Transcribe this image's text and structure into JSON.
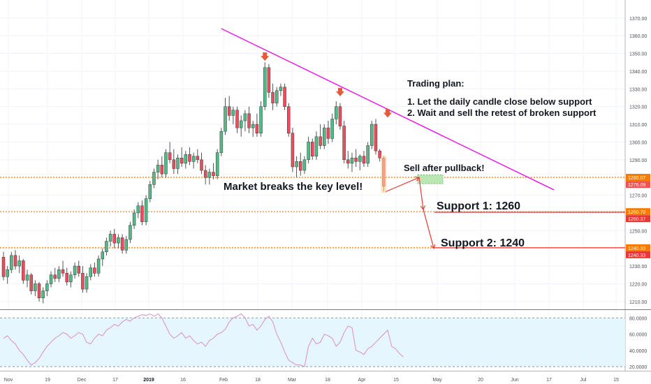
{
  "chart_data": [
    {
      "type": "candlestick",
      "title": "",
      "price_axis": {
        "ticks": [
          "1370.00",
          "1360.00",
          "1350.00",
          "1340.00",
          "1330.00",
          "1320.00",
          "1310.00",
          "1300.00",
          "1290.00",
          "1280.00",
          "1270.00",
          "1260.00",
          "1250.00",
          "1240.00",
          "1230.00",
          "1220.00",
          "1210.00"
        ],
        "ylim": [
          1206,
          1377
        ],
        "position": "right"
      },
      "time_axis": {
        "labels": [
          "Nov",
          "19",
          "Dec",
          "17",
          "2019",
          "16",
          "Feb",
          "18",
          "Mar",
          "18",
          "Apr",
          "15",
          "May",
          "20",
          "Jun",
          "17",
          "Jul",
          "15"
        ],
        "bold_labels": [
          "2019"
        ]
      },
      "grid": true,
      "candles": [
        {
          "o": 1235,
          "h": 1238,
          "l": 1222,
          "c": 1224
        },
        {
          "o": 1224,
          "h": 1230,
          "l": 1220,
          "c": 1228
        },
        {
          "o": 1228,
          "h": 1238,
          "l": 1226,
          "c": 1236
        },
        {
          "o": 1236,
          "h": 1239,
          "l": 1228,
          "c": 1230
        },
        {
          "o": 1230,
          "h": 1236,
          "l": 1226,
          "c": 1233
        },
        {
          "o": 1233,
          "h": 1234,
          "l": 1220,
          "c": 1222
        },
        {
          "o": 1222,
          "h": 1228,
          "l": 1218,
          "c": 1225
        },
        {
          "o": 1225,
          "h": 1226,
          "l": 1214,
          "c": 1216
        },
        {
          "o": 1216,
          "h": 1222,
          "l": 1213,
          "c": 1220
        },
        {
          "o": 1220,
          "h": 1221,
          "l": 1210,
          "c": 1212
        },
        {
          "o": 1212,
          "h": 1218,
          "l": 1209,
          "c": 1216
        },
        {
          "o": 1216,
          "h": 1222,
          "l": 1213,
          "c": 1220
        },
        {
          "o": 1220,
          "h": 1227,
          "l": 1218,
          "c": 1225
        },
        {
          "o": 1225,
          "h": 1229,
          "l": 1221,
          "c": 1223
        },
        {
          "o": 1223,
          "h": 1230,
          "l": 1221,
          "c": 1228
        },
        {
          "o": 1228,
          "h": 1233,
          "l": 1224,
          "c": 1226
        },
        {
          "o": 1226,
          "h": 1229,
          "l": 1219,
          "c": 1221
        },
        {
          "o": 1221,
          "h": 1227,
          "l": 1218,
          "c": 1225
        },
        {
          "o": 1225,
          "h": 1232,
          "l": 1223,
          "c": 1230
        },
        {
          "o": 1230,
          "h": 1233,
          "l": 1224,
          "c": 1226
        },
        {
          "o": 1226,
          "h": 1230,
          "l": 1215,
          "c": 1217
        },
        {
          "o": 1217,
          "h": 1226,
          "l": 1215,
          "c": 1224
        },
        {
          "o": 1224,
          "h": 1231,
          "l": 1222,
          "c": 1229
        },
        {
          "o": 1229,
          "h": 1232,
          "l": 1224,
          "c": 1226
        },
        {
          "o": 1226,
          "h": 1236,
          "l": 1224,
          "c": 1234
        },
        {
          "o": 1234,
          "h": 1240,
          "l": 1230,
          "c": 1238
        },
        {
          "o": 1238,
          "h": 1246,
          "l": 1236,
          "c": 1244
        },
        {
          "o": 1244,
          "h": 1250,
          "l": 1241,
          "c": 1248
        },
        {
          "o": 1248,
          "h": 1251,
          "l": 1240,
          "c": 1243
        },
        {
          "o": 1243,
          "h": 1248,
          "l": 1240,
          "c": 1246
        },
        {
          "o": 1246,
          "h": 1248,
          "l": 1237,
          "c": 1239
        },
        {
          "o": 1239,
          "h": 1247,
          "l": 1237,
          "c": 1245
        },
        {
          "o": 1245,
          "h": 1255,
          "l": 1243,
          "c": 1253
        },
        {
          "o": 1253,
          "h": 1262,
          "l": 1251,
          "c": 1260
        },
        {
          "o": 1260,
          "h": 1266,
          "l": 1257,
          "c": 1264
        },
        {
          "o": 1264,
          "h": 1267,
          "l": 1253,
          "c": 1255
        },
        {
          "o": 1255,
          "h": 1270,
          "l": 1253,
          "c": 1268
        },
        {
          "o": 1268,
          "h": 1278,
          "l": 1266,
          "c": 1276
        },
        {
          "o": 1276,
          "h": 1285,
          "l": 1274,
          "c": 1283
        },
        {
          "o": 1283,
          "h": 1290,
          "l": 1279,
          "c": 1287
        },
        {
          "o": 1287,
          "h": 1292,
          "l": 1280,
          "c": 1282
        },
        {
          "o": 1282,
          "h": 1296,
          "l": 1280,
          "c": 1294
        },
        {
          "o": 1294,
          "h": 1300,
          "l": 1288,
          "c": 1290
        },
        {
          "o": 1290,
          "h": 1296,
          "l": 1282,
          "c": 1285
        },
        {
          "o": 1285,
          "h": 1293,
          "l": 1282,
          "c": 1291
        },
        {
          "o": 1291,
          "h": 1297,
          "l": 1286,
          "c": 1288
        },
        {
          "o": 1288,
          "h": 1295,
          "l": 1285,
          "c": 1293
        },
        {
          "o": 1293,
          "h": 1297,
          "l": 1287,
          "c": 1289
        },
        {
          "o": 1289,
          "h": 1294,
          "l": 1285,
          "c": 1292
        },
        {
          "o": 1292,
          "h": 1296,
          "l": 1288,
          "c": 1290
        },
        {
          "o": 1290,
          "h": 1294,
          "l": 1282,
          "c": 1284
        },
        {
          "o": 1284,
          "h": 1287,
          "l": 1276,
          "c": 1280
        },
        {
          "o": 1280,
          "h": 1285,
          "l": 1276,
          "c": 1283
        },
        {
          "o": 1283,
          "h": 1288,
          "l": 1279,
          "c": 1281
        },
        {
          "o": 1281,
          "h": 1296,
          "l": 1279,
          "c": 1294
        },
        {
          "o": 1294,
          "h": 1308,
          "l": 1292,
          "c": 1306
        },
        {
          "o": 1306,
          "h": 1325,
          "l": 1304,
          "c": 1320
        },
        {
          "o": 1320,
          "h": 1326,
          "l": 1312,
          "c": 1315
        },
        {
          "o": 1315,
          "h": 1320,
          "l": 1310,
          "c": 1318
        },
        {
          "o": 1318,
          "h": 1320,
          "l": 1305,
          "c": 1308
        },
        {
          "o": 1308,
          "h": 1315,
          "l": 1303,
          "c": 1312
        },
        {
          "o": 1312,
          "h": 1318,
          "l": 1306,
          "c": 1316
        },
        {
          "o": 1316,
          "h": 1320,
          "l": 1305,
          "c": 1308
        },
        {
          "o": 1308,
          "h": 1312,
          "l": 1303,
          "c": 1310
        },
        {
          "o": 1310,
          "h": 1316,
          "l": 1303,
          "c": 1305
        },
        {
          "o": 1305,
          "h": 1323,
          "l": 1303,
          "c": 1320
        },
        {
          "o": 1320,
          "h": 1345,
          "l": 1318,
          "c": 1342
        },
        {
          "o": 1342,
          "h": 1344,
          "l": 1325,
          "c": 1328
        },
        {
          "o": 1328,
          "h": 1333,
          "l": 1318,
          "c": 1322
        },
        {
          "o": 1322,
          "h": 1331,
          "l": 1320,
          "c": 1329
        },
        {
          "o": 1329,
          "h": 1333,
          "l": 1326,
          "c": 1331
        },
        {
          "o": 1331,
          "h": 1333,
          "l": 1318,
          "c": 1320
        },
        {
          "o": 1320,
          "h": 1322,
          "l": 1303,
          "c": 1305
        },
        {
          "o": 1305,
          "h": 1308,
          "l": 1283,
          "c": 1286
        },
        {
          "o": 1286,
          "h": 1292,
          "l": 1280,
          "c": 1289
        },
        {
          "o": 1289,
          "h": 1294,
          "l": 1281,
          "c": 1284
        },
        {
          "o": 1284,
          "h": 1292,
          "l": 1282,
          "c": 1290
        },
        {
          "o": 1290,
          "h": 1303,
          "l": 1288,
          "c": 1300
        },
        {
          "o": 1300,
          "h": 1302,
          "l": 1290,
          "c": 1292
        },
        {
          "o": 1292,
          "h": 1306,
          "l": 1290,
          "c": 1303
        },
        {
          "o": 1303,
          "h": 1310,
          "l": 1296,
          "c": 1298
        },
        {
          "o": 1298,
          "h": 1310,
          "l": 1296,
          "c": 1308
        },
        {
          "o": 1308,
          "h": 1312,
          "l": 1299,
          "c": 1302
        },
        {
          "o": 1302,
          "h": 1316,
          "l": 1300,
          "c": 1313
        },
        {
          "o": 1313,
          "h": 1323,
          "l": 1310,
          "c": 1320
        },
        {
          "o": 1320,
          "h": 1322,
          "l": 1307,
          "c": 1309
        },
        {
          "o": 1309,
          "h": 1312,
          "l": 1288,
          "c": 1290
        },
        {
          "o": 1290,
          "h": 1295,
          "l": 1285,
          "c": 1288
        },
        {
          "o": 1288,
          "h": 1294,
          "l": 1283,
          "c": 1291
        },
        {
          "o": 1291,
          "h": 1296,
          "l": 1286,
          "c": 1289
        },
        {
          "o": 1289,
          "h": 1293,
          "l": 1284,
          "c": 1292
        },
        {
          "o": 1292,
          "h": 1295,
          "l": 1286,
          "c": 1288
        },
        {
          "o": 1288,
          "h": 1300,
          "l": 1286,
          "c": 1298
        },
        {
          "o": 1298,
          "h": 1312,
          "l": 1296,
          "c": 1310
        },
        {
          "o": 1310,
          "h": 1313,
          "l": 1293,
          "c": 1295
        },
        {
          "o": 1295,
          "h": 1296,
          "l": 1289,
          "c": 1291
        },
        {
          "o": 1291,
          "h": 1292,
          "l": 1272,
          "c": 1275
        }
      ],
      "trendline": {
        "from": {
          "bar": 55,
          "price": 1364
        },
        "to": {
          "bar": 139,
          "price": 1273
        },
        "color": "#e81ee8"
      },
      "reversal_arrows": [
        {
          "bar": 66,
          "price": 1347
        },
        {
          "bar": 85,
          "price": 1327
        },
        {
          "bar": 97,
          "price": 1315
        }
      ],
      "levels": [
        {
          "price": 1280.07,
          "label": "1280.07",
          "color": "#f57c00",
          "style": "dotted"
        },
        {
          "price": 1276.09,
          "label": "1276.09",
          "color": "#ef5350",
          "style": "none"
        },
        {
          "price": 1260.7,
          "label": "1260.70",
          "color": "#f57c00",
          "style": "dotted"
        },
        {
          "price": 1260.37,
          "label": "1260.37",
          "color": "#e53935",
          "style": "solid"
        },
        {
          "price": 1240.33,
          "label": "1240.33",
          "color": "#f57c00",
          "style": "dotted"
        },
        {
          "price": 1240.33,
          "label": "1240.33",
          "color": "#e53935",
          "style": "solid"
        }
      ],
      "annotations": {
        "plan_title": "Trading plan:",
        "plan_step1": "1. Let the daily candle close below support",
        "plan_step2": "2. Wait and sell the retest of broken support",
        "breakout": "Market breaks the key level!",
        "pullback": "Sell after pullback!",
        "support1": "Support 1: 1260",
        "support2": "Support 2: 1240"
      },
      "colors": {
        "up": "#53b987",
        "down": "#eb4d5c",
        "trend": "#e81ee8",
        "level": "#f57c00",
        "target": "#e53935"
      }
    },
    {
      "type": "line",
      "indicator": "oscillator",
      "ticks": [
        "80.0000",
        "60.0000",
        "40.0000",
        "20.0000"
      ],
      "ylim": [
        15,
        88
      ],
      "band": [
        20,
        80
      ],
      "values": [
        55,
        58,
        52,
        48,
        40,
        35,
        28,
        22,
        25,
        30,
        38,
        45,
        50,
        55,
        58,
        62,
        60,
        55,
        58,
        62,
        60,
        50,
        48,
        55,
        60,
        58,
        65,
        68,
        72,
        70,
        75,
        78,
        76,
        80,
        82,
        84,
        83,
        85,
        82,
        85,
        80,
        70,
        60,
        55,
        58,
        62,
        55,
        58,
        52,
        48,
        50,
        45,
        52,
        55,
        60,
        62,
        66,
        75,
        80,
        82,
        85,
        80,
        70,
        72,
        65,
        70,
        78,
        82,
        75,
        60,
        50,
        38,
        28,
        25,
        22,
        22,
        20,
        45,
        55,
        48,
        50,
        60,
        58,
        55,
        45,
        50,
        62,
        70,
        68,
        40,
        38,
        35,
        42,
        45,
        50,
        55,
        60,
        65,
        45,
        42,
        36,
        32
      ]
    }
  ]
}
